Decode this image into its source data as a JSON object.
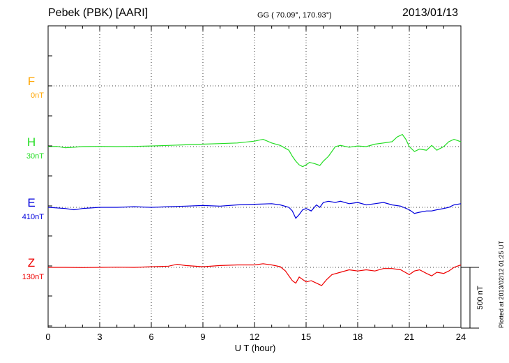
{
  "header": {
    "station": "Pebek (PBK)  [AARI]",
    "coords": "GG ( 70.09°, 170.93°)",
    "date": "2013/01/13"
  },
  "plotted_note": "Plotted at 2013/02/12 01:25 UT",
  "chart_data": {
    "type": "line",
    "title": "Pebek (PBK)  [AARI]",
    "xlabel": "U T (hour)",
    "xlim": [
      0,
      24
    ],
    "xticks": [
      "0",
      "3",
      "6",
      "9",
      "12",
      "15",
      "18",
      "21",
      "24"
    ],
    "grid": true,
    "scale_bar": "500 nT",
    "series": [
      {
        "name": "F",
        "offset_label": "0nT",
        "color": "#ffa500",
        "x": [],
        "y": []
      },
      {
        "name": "H",
        "offset_label": "30nT",
        "color": "#22dd22",
        "x": [
          0,
          0.5,
          1,
          1.5,
          2,
          3,
          4,
          5,
          6,
          7,
          8,
          9,
          10,
          11,
          12,
          12.5,
          13,
          13.5,
          14,
          14.2,
          14.4,
          14.6,
          14.8,
          15,
          15.2,
          15.5,
          15.8,
          16,
          16.3,
          16.7,
          17,
          17.5,
          18,
          18.5,
          19,
          19.5,
          20,
          20.3,
          20.6,
          20.8,
          21,
          21.3,
          21.6,
          22,
          22.3,
          22.6,
          23,
          23.3,
          23.6,
          24
        ],
        "y": [
          0,
          2,
          -10,
          -5,
          0,
          2,
          0,
          2,
          5,
          10,
          15,
          20,
          25,
          30,
          45,
          60,
          30,
          10,
          -30,
          -80,
          -120,
          -150,
          -165,
          -150,
          -130,
          -140,
          -155,
          -120,
          -80,
          0,
          10,
          -5,
          5,
          0,
          20,
          30,
          40,
          80,
          100,
          60,
          0,
          -40,
          -20,
          -30,
          10,
          -30,
          0,
          40,
          60,
          40
        ]
      },
      {
        "name": "E",
        "offset_label": "410nT",
        "color": "#0000dd",
        "x": [
          0,
          1,
          1.5,
          2,
          3,
          4,
          5,
          6,
          7,
          8,
          9,
          10,
          11,
          12,
          13,
          13.5,
          14,
          14.2,
          14.4,
          14.6,
          14.8,
          15,
          15.3,
          15.6,
          15.8,
          16,
          16.3,
          16.7,
          17,
          17.5,
          18,
          18.5,
          19,
          19.5,
          20,
          20.5,
          21,
          21.3,
          21.6,
          22,
          22.3,
          22.6,
          23,
          23.3,
          23.6,
          24
        ],
        "y": [
          0,
          -10,
          -20,
          -10,
          0,
          0,
          5,
          0,
          5,
          10,
          15,
          10,
          20,
          25,
          30,
          20,
          0,
          -30,
          -90,
          -60,
          -20,
          -10,
          -30,
          20,
          0,
          40,
          50,
          40,
          50,
          30,
          40,
          20,
          30,
          40,
          20,
          10,
          -20,
          -50,
          -40,
          -30,
          -30,
          -20,
          -10,
          0,
          20,
          30
        ]
      },
      {
        "name": "Z",
        "offset_label": "130nT",
        "color": "#ee0000",
        "x": [
          0,
          1,
          2,
          3,
          4,
          5,
          6,
          7,
          7.5,
          8,
          9,
          10,
          11,
          12,
          12.5,
          13,
          13.5,
          13.8,
          14,
          14.2,
          14.4,
          14.6,
          14.8,
          15,
          15.3,
          15.6,
          15.9,
          16.2,
          16.5,
          17,
          17.5,
          18,
          18.5,
          19,
          19.5,
          20,
          20.5,
          21,
          21.3,
          21.6,
          22,
          22.3,
          22.6,
          23,
          23.3,
          23.6,
          24
        ],
        "y": [
          0,
          0,
          -2,
          0,
          2,
          0,
          5,
          10,
          25,
          15,
          5,
          15,
          20,
          20,
          30,
          20,
          5,
          -30,
          -70,
          -110,
          -130,
          -80,
          -100,
          -120,
          -110,
          -130,
          -150,
          -100,
          -60,
          -40,
          -20,
          -30,
          -20,
          -30,
          -10,
          -10,
          -20,
          -60,
          -30,
          -20,
          -50,
          -70,
          -40,
          -50,
          -30,
          0,
          20
        ]
      }
    ]
  }
}
